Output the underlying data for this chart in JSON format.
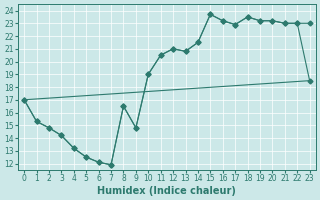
{
  "xlabel": "Humidex (Indice chaleur)",
  "xlim": [
    -0.5,
    23.5
  ],
  "ylim": [
    11.5,
    24.5
  ],
  "yticks": [
    12,
    13,
    14,
    15,
    16,
    17,
    18,
    19,
    20,
    21,
    22,
    23,
    24
  ],
  "xticks": [
    0,
    1,
    2,
    3,
    4,
    5,
    6,
    7,
    8,
    9,
    10,
    11,
    12,
    13,
    14,
    15,
    16,
    17,
    18,
    19,
    20,
    21,
    22,
    23
  ],
  "bg_color": "#cce8e8",
  "line_color": "#2d7a6e",
  "grid_color": "#b8d8d8",
  "line1_x": [
    0,
    1,
    2,
    3,
    4,
    5,
    6,
    7,
    8,
    9,
    10,
    11,
    12,
    13,
    14,
    15,
    16,
    17,
    18,
    19,
    20,
    21,
    22,
    23
  ],
  "line1_y": [
    17.0,
    15.3,
    14.8,
    14.2,
    13.2,
    12.5,
    12.1,
    11.9,
    16.5,
    14.8,
    19.0,
    20.5,
    21.0,
    20.8,
    21.5,
    23.7,
    23.2,
    22.9,
    23.5,
    23.2,
    23.2,
    23.0,
    23.0,
    23.0
  ],
  "line2_x": [
    0,
    1,
    2,
    3,
    4,
    5,
    6,
    7,
    8,
    9,
    10,
    11,
    12,
    13,
    14,
    15,
    16,
    17,
    18,
    19,
    20,
    21,
    22,
    23
  ],
  "line2_y": [
    17.0,
    15.3,
    14.8,
    14.2,
    13.2,
    12.5,
    12.1,
    11.9,
    16.5,
    14.8,
    19.0,
    20.5,
    21.0,
    20.8,
    21.5,
    23.7,
    23.2,
    22.9,
    23.5,
    23.2,
    23.2,
    23.0,
    23.0,
    18.5
  ],
  "line3_x": [
    0,
    23
  ],
  "line3_y": [
    17.0,
    18.5
  ],
  "markersize": 2.5,
  "linewidth": 0.8,
  "tick_fontsize": 5.5,
  "xlabel_fontsize": 7
}
